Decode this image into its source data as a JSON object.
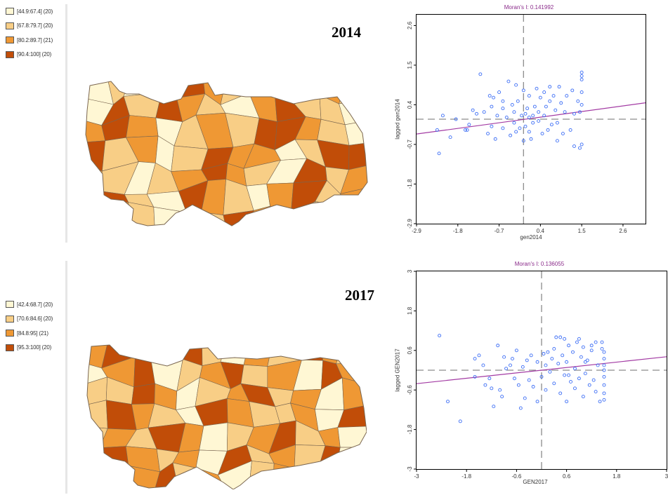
{
  "colors": {
    "class1": "#fff7d4",
    "class2": "#f8ce86",
    "class3": "#ef9834",
    "class4": "#c14d08",
    "border": "#7a6650",
    "point": "#3d6ef5",
    "regression": "#a23aa3",
    "crosshair": "#8c8c8c",
    "title": "#8a2a8a"
  },
  "panels": [
    {
      "year": "2014",
      "legend": [
        "[44.9:67.4] (20)",
        "[67.8:79.7] (20)",
        "[80.2:89.7] (21)",
        "[90.4:100] (20)"
      ],
      "map_classes": [
        1,
        2,
        1,
        1,
        4,
        3,
        2,
        1,
        2,
        1,
        3,
        2,
        1,
        4,
        2,
        4,
        3,
        2,
        1,
        3,
        4,
        2,
        2,
        1,
        3,
        4,
        3,
        1,
        2,
        3,
        2,
        4,
        4,
        3,
        2,
        1,
        4,
        2,
        3,
        1,
        2,
        4,
        3,
        3,
        1,
        2,
        4,
        4,
        3,
        2,
        1,
        2,
        3,
        4,
        3,
        2,
        1,
        4,
        2,
        3,
        3,
        4,
        2,
        1,
        4,
        3,
        2,
        1,
        3,
        4,
        2,
        3,
        4,
        3,
        2,
        1,
        4,
        2,
        4,
        3,
        2
      ],
      "chart_data": {
        "type": "scatter",
        "title": "Moran's I: 0.141992",
        "xlabel": "gen2014",
        "ylabel": "lagged gen2014",
        "xlim": [
          -2.9,
          3.2
        ],
        "ylim": [
          -2.9,
          2.9
        ],
        "xticks": [
          "-2.9",
          "-1.8",
          "-0.7",
          "0.4",
          "1.5",
          "2.6"
        ],
        "xtick_values": [
          -2.9,
          -1.8,
          -0.7,
          0.4,
          1.5,
          2.6
        ],
        "yticks": [
          "-2.9",
          "-1.8",
          "-0.7",
          "0.4",
          "1.5",
          "2.6"
        ],
        "ytick_values": [
          -2.9,
          -1.8,
          -0.7,
          0.4,
          1.5,
          2.6
        ],
        "mean_x": -0.05,
        "mean_y": 0.0,
        "slope": 0.141992,
        "intercept": 0.0,
        "points": [
          [
            -2.3,
            -0.95
          ],
          [
            -2.35,
            -0.3
          ],
          [
            -2.2,
            0.1
          ],
          [
            -2.0,
            -0.5
          ],
          [
            -1.85,
            0.0
          ],
          [
            -1.6,
            -0.3
          ],
          [
            -1.4,
            0.25
          ],
          [
            -1.3,
            0.15
          ],
          [
            -1.5,
            -0.15
          ],
          [
            -1.2,
            1.25
          ],
          [
            -1.0,
            -0.4
          ],
          [
            -1.1,
            0.2
          ],
          [
            -0.9,
            0.35
          ],
          [
            -0.85,
            0.6
          ],
          [
            -0.9,
            -0.2
          ],
          [
            -0.8,
            -0.55
          ],
          [
            -0.75,
            0.1
          ],
          [
            -0.7,
            0.75
          ],
          [
            -0.6,
            0.3
          ],
          [
            -0.6,
            -0.25
          ],
          [
            -0.5,
            0.05
          ],
          [
            -0.45,
            1.05
          ],
          [
            -0.4,
            -0.45
          ],
          [
            -0.35,
            0.4
          ],
          [
            -0.3,
            -0.1
          ],
          [
            -0.3,
            0.2
          ],
          [
            -0.25,
            -0.35
          ],
          [
            -0.2,
            0.5
          ],
          [
            -0.15,
            -0.25
          ],
          [
            -0.1,
            0.1
          ],
          [
            -0.05,
            -0.6
          ],
          [
            -0.05,
            0.8
          ],
          [
            0.0,
            0.15
          ],
          [
            0.0,
            -0.2
          ],
          [
            0.05,
            0.3
          ],
          [
            0.1,
            -0.35
          ],
          [
            0.1,
            0.65
          ],
          [
            0.1,
            0.05
          ],
          [
            0.15,
            -0.55
          ],
          [
            0.2,
            0.1
          ],
          [
            0.2,
            -0.1
          ],
          [
            0.25,
            0.35
          ],
          [
            0.3,
            0.85
          ],
          [
            0.35,
            0.2
          ],
          [
            0.35,
            -0.05
          ],
          [
            0.4,
            0.6
          ],
          [
            0.45,
            -0.4
          ],
          [
            0.5,
            0.1
          ],
          [
            0.5,
            0.75
          ],
          [
            0.55,
            0.35
          ],
          [
            0.6,
            -0.3
          ],
          [
            0.65,
            0.5
          ],
          [
            0.7,
            -0.15
          ],
          [
            0.75,
            0.65
          ],
          [
            0.8,
            0.25
          ],
          [
            0.85,
            -0.1
          ],
          [
            0.9,
            0.9
          ],
          [
            0.95,
            0.45
          ],
          [
            1.0,
            -0.4
          ],
          [
            1.05,
            0.2
          ],
          [
            1.1,
            0.65
          ],
          [
            1.2,
            -0.3
          ],
          [
            1.25,
            0.8
          ],
          [
            1.3,
            0.15
          ],
          [
            1.3,
            -0.75
          ],
          [
            1.4,
            0.5
          ],
          [
            1.45,
            0.2
          ],
          [
            1.45,
            -0.8
          ],
          [
            1.5,
            1.3
          ],
          [
            1.5,
            1.2
          ],
          [
            1.5,
            1.1
          ],
          [
            1.5,
            0.75
          ],
          [
            1.5,
            0.4
          ],
          [
            1.5,
            -0.7
          ],
          [
            0.85,
            -0.6
          ],
          [
            0.65,
            0.9
          ],
          [
            -0.6,
            0.5
          ],
          [
            -0.95,
            0.65
          ],
          [
            -1.55,
            -0.3
          ],
          [
            -0.25,
            0.95
          ]
        ]
      }
    },
    {
      "year": "2017",
      "legend": [
        "[42.4:68.7] (20)",
        "[70.6:84.6] (20)",
        "[84.8:95] (21)",
        "[95.3:100] (20)"
      ],
      "map_classes": [
        3,
        4,
        2,
        3,
        4,
        2,
        1,
        3,
        2,
        4,
        3,
        2,
        1,
        3,
        4,
        1,
        2,
        3,
        4,
        2,
        3,
        1,
        4,
        3,
        2,
        2,
        4,
        3,
        1,
        2,
        3,
        4,
        2,
        3,
        1,
        3,
        2,
        4,
        3,
        2,
        1,
        4,
        3,
        2,
        2,
        3,
        1,
        4,
        2,
        3,
        2,
        4,
        3,
        1,
        2,
        3,
        4,
        2,
        3,
        1,
        2,
        4,
        3,
        2,
        3,
        1,
        4,
        2,
        3,
        2,
        4,
        1,
        3,
        2,
        3,
        4,
        2,
        3,
        1,
        2,
        3
      ],
      "chart_data": {
        "type": "scatter",
        "title": "Moran's I: 0.136055",
        "xlabel": "GEN2017",
        "ylabel": "lagged GEN2017",
        "xlim": [
          -3,
          3
        ],
        "ylim": [
          -3,
          3
        ],
        "xticks": [
          "-3",
          "-1.8",
          "-0.6",
          "0.6",
          "1.8",
          "3"
        ],
        "xtick_values": [
          -3,
          -1.8,
          -0.6,
          0.6,
          1.8,
          3
        ],
        "yticks": [
          "-3",
          "-1.8",
          "-0.6",
          "0.6",
          "1.8",
          "3"
        ],
        "ytick_values": [
          -3,
          -1.8,
          -0.6,
          0.6,
          1.8,
          3
        ],
        "mean_x": 0.0,
        "mean_y": 0.0,
        "slope": 0.136055,
        "intercept": 0.0,
        "points": [
          [
            -2.45,
            1.05
          ],
          [
            -2.25,
            -0.95
          ],
          [
            -1.95,
            -1.55
          ],
          [
            -1.6,
            0.35
          ],
          [
            -1.6,
            -0.2
          ],
          [
            -1.5,
            0.45
          ],
          [
            -1.4,
            0.15
          ],
          [
            -1.25,
            -0.25
          ],
          [
            -1.2,
            -0.55
          ],
          [
            -1.15,
            -1.1
          ],
          [
            -1.05,
            0.75
          ],
          [
            -1.0,
            -0.6
          ],
          [
            -0.95,
            -0.8
          ],
          [
            -0.9,
            0.4
          ],
          [
            -0.85,
            0.05
          ],
          [
            -0.7,
            0.35
          ],
          [
            -0.6,
            0.6
          ],
          [
            -0.55,
            -0.45
          ],
          [
            -0.5,
            -1.15
          ],
          [
            -0.45,
            0.1
          ],
          [
            -0.35,
            0.3
          ],
          [
            -0.3,
            -0.3
          ],
          [
            -0.25,
            0.45
          ],
          [
            -0.2,
            -0.5
          ],
          [
            -0.1,
            0.25
          ],
          [
            0.0,
            -0.2
          ],
          [
            0.05,
            0.5
          ],
          [
            0.1,
            0.15
          ],
          [
            0.1,
            -0.6
          ],
          [
            0.2,
            -0.05
          ],
          [
            0.25,
            0.35
          ],
          [
            0.3,
            -0.4
          ],
          [
            0.35,
            1.0
          ],
          [
            0.4,
            0.2
          ],
          [
            0.45,
            -0.7
          ],
          [
            0.45,
            1.0
          ],
          [
            0.5,
            0.45
          ],
          [
            0.55,
            -0.15
          ],
          [
            0.6,
            0.25
          ],
          [
            0.6,
            -0.95
          ],
          [
            0.65,
            0.75
          ],
          [
            0.7,
            -0.35
          ],
          [
            0.75,
            0.55
          ],
          [
            0.8,
            0.05
          ],
          [
            0.8,
            -0.55
          ],
          [
            0.85,
            0.85
          ],
          [
            0.9,
            -0.25
          ],
          [
            0.95,
            0.4
          ],
          [
            1.0,
            -0.8
          ],
          [
            1.0,
            0.7
          ],
          [
            1.05,
            -0.1
          ],
          [
            1.1,
            0.3
          ],
          [
            1.15,
            -0.45
          ],
          [
            1.2,
            0.75
          ],
          [
            1.2,
            0.6
          ],
          [
            1.3,
            0.85
          ],
          [
            1.3,
            -0.65
          ],
          [
            1.35,
            0.15
          ],
          [
            1.4,
            -0.95
          ],
          [
            1.45,
            0.85
          ],
          [
            1.5,
            0.55
          ],
          [
            1.5,
            0.35
          ],
          [
            1.5,
            0.15
          ],
          [
            1.5,
            -0.2
          ],
          [
            1.5,
            -0.45
          ],
          [
            1.5,
            -0.7
          ],
          [
            1.5,
            -0.9
          ],
          [
            1.5,
            0.0
          ],
          [
            0.9,
            0.95
          ],
          [
            -0.1,
            -0.95
          ],
          [
            -0.75,
            0.15
          ],
          [
            0.15,
            0.55
          ],
          [
            0.65,
            -0.15
          ],
          [
            1.05,
            0.25
          ],
          [
            -1.35,
            -0.45
          ],
          [
            0.55,
            0.95
          ],
          [
            1.25,
            -0.3
          ],
          [
            -0.4,
            -0.85
          ],
          [
            0.3,
            0.65
          ],
          [
            1.45,
            0.65
          ],
          [
            -0.65,
            -0.25
          ]
        ]
      }
    }
  ]
}
